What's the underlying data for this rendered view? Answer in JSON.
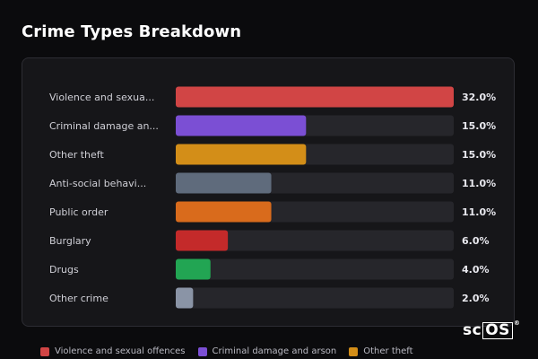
{
  "title": "Crime Types Breakdown",
  "chart_data": {
    "type": "bar",
    "orientation": "horizontal",
    "title": "Crime Types Breakdown",
    "categories": [
      "Violence and sexua...",
      "Criminal damage an...",
      "Other theft",
      "Anti-social behavi...",
      "Public order",
      "Burglary",
      "Drugs",
      "Other crime"
    ],
    "values": [
      32.0,
      15.0,
      15.0,
      11.0,
      11.0,
      6.0,
      4.0,
      2.0
    ],
    "value_labels": [
      "32.0%",
      "15.0%",
      "15.0%",
      "11.0%",
      "11.0%",
      "6.0%",
      "4.0%",
      "2.0%"
    ],
    "colors": [
      "#d14545",
      "#7b4fd4",
      "#d38e18",
      "#5f6b7c",
      "#d96b1c",
      "#c42a2a",
      "#22a553",
      "#8a94a6"
    ],
    "track_color": "#26262b",
    "xlim": [
      0,
      32
    ],
    "grid": false
  },
  "legend": [
    {
      "label": "Violence and sexual offences",
      "color": "#d14545"
    },
    {
      "label": "Criminal damage and arson",
      "color": "#7b4fd4"
    },
    {
      "label": "Other theft",
      "color": "#d38e18"
    }
  ],
  "logo": {
    "prefix": "sc",
    "boxed": "OS",
    "mark": "®"
  }
}
